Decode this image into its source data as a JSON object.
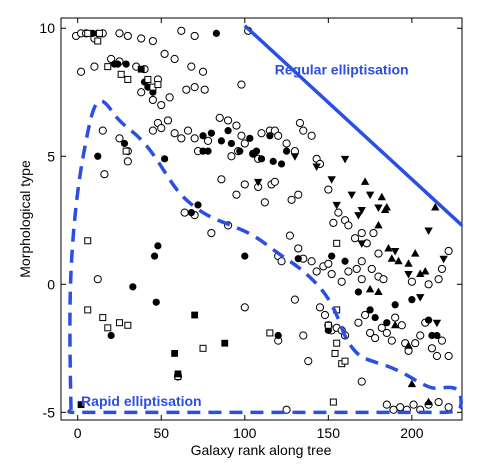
{
  "chart_data": {
    "type": "scatter",
    "xlabel": "Galaxy rank along tree",
    "ylabel": "Morphological type",
    "xlim": [
      -10,
      230
    ],
    "ylim": [
      -5.3,
      10.4
    ],
    "xticks": [
      0,
      50,
      100,
      150,
      200
    ],
    "yticks": [
      -5,
      0,
      5,
      10
    ],
    "xtick_labels": [
      "0",
      "50",
      "100",
      "150",
      "200"
    ],
    "ytick_labels": [
      "-5",
      "0",
      "5",
      "10"
    ],
    "grid": false,
    "colors": {
      "annotation": "#2b4fe3",
      "marker": "#000000"
    },
    "annotations": [
      {
        "text": "Regular elliptisation",
        "x": 158,
        "y": 8.2
      },
      {
        "text": "Rapid elliptisation",
        "x": 2,
        "y": -4.75
      }
    ],
    "regular_line": {
      "style": "solid",
      "x": [
        100,
        230
      ],
      "y": [
        10.1,
        2.3
      ]
    },
    "rapid_boundary": {
      "style": "dashed",
      "x": [
        -4,
        -5,
        -4,
        0,
        6,
        10,
        14,
        18,
        22,
        28,
        36,
        44,
        52,
        60,
        70,
        80,
        92,
        106,
        120,
        134,
        148,
        156,
        160,
        168,
        176,
        186,
        196,
        206,
        214,
        222,
        228,
        230,
        228,
        210,
        180,
        140,
        100,
        60,
        30,
        10,
        0,
        -6,
        -4
      ],
      "y": [
        -4.9,
        -2,
        1,
        3.8,
        6.0,
        7.0,
        7.2,
        7.0,
        6.6,
        6.2,
        5.8,
        5.2,
        4.4,
        3.6,
        3.0,
        2.6,
        2.3,
        1.9,
        1.2,
        0.6,
        -0.3,
        -1.3,
        -2.1,
        -2.8,
        -3.0,
        -3.2,
        -3.5,
        -3.9,
        -4.1,
        -4.0,
        -4.1,
        -4.6,
        -5.0,
        -5.0,
        -5.0,
        -5.0,
        -5.0,
        -5.0,
        -5.0,
        -5.0,
        -5.0,
        -5.0,
        -4.9
      ]
    },
    "series": [
      {
        "marker": "open-circle",
        "points": [
          [
            -1,
            9.7
          ],
          [
            2,
            9.8
          ],
          [
            5,
            9.8
          ],
          [
            15,
            9.8
          ],
          [
            25,
            9.8
          ],
          [
            30,
            9.7
          ],
          [
            38,
            9.6
          ],
          [
            45,
            9.5
          ],
          [
            2,
            8.3
          ],
          [
            10,
            8.5
          ],
          [
            20,
            8.8
          ],
          [
            25,
            8.7
          ],
          [
            35,
            8.5
          ],
          [
            40,
            8.4
          ],
          [
            48,
            8.0
          ],
          [
            52,
            9.0
          ],
          [
            58,
            8.8
          ],
          [
            62,
            9.9
          ],
          [
            68,
            8.5
          ],
          [
            70,
            9.7
          ],
          [
            75,
            8.3
          ],
          [
            102,
            9.9
          ],
          [
            10,
            9.6
          ],
          [
            38,
            7.5
          ],
          [
            45,
            7.2
          ],
          [
            50,
            7.0
          ],
          [
            55,
            7.3
          ],
          [
            65,
            7.6
          ],
          [
            70,
            7.7
          ],
          [
            76,
            7.6
          ],
          [
            98,
            7.8
          ],
          [
            15,
            6.0
          ],
          [
            25,
            5.7
          ],
          [
            30,
            5.2
          ],
          [
            45,
            6.0
          ],
          [
            48,
            6.3
          ],
          [
            50,
            6.1
          ],
          [
            54,
            6.4
          ],
          [
            58,
            5.9
          ],
          [
            62,
            5.7
          ],
          [
            66,
            6.0
          ],
          [
            70,
            5.7
          ],
          [
            72,
            5.2
          ],
          [
            78,
            5.6
          ],
          [
            85,
            6.5
          ],
          [
            90,
            6.4
          ],
          [
            95,
            6.2
          ],
          [
            98,
            5.8
          ],
          [
            100,
            5.5
          ],
          [
            110,
            5.9
          ],
          [
            115,
            6.0
          ],
          [
            118,
            6.0
          ],
          [
            120,
            5.8
          ],
          [
            125,
            5.5
          ],
          [
            130,
            5.2
          ],
          [
            133,
            6.3
          ],
          [
            135,
            6.0
          ],
          [
            140,
            5.8
          ],
          [
            143,
            4.9
          ],
          [
            145,
            4.7
          ],
          [
            92,
            5.0
          ],
          [
            96,
            5.2
          ],
          [
            105,
            5.1
          ],
          [
            108,
            4.9
          ],
          [
            16,
            4.3
          ],
          [
            30,
            4.8
          ],
          [
            86,
            4.1
          ],
          [
            95,
            3.5
          ],
          [
            100,
            3.9
          ],
          [
            108,
            3.8
          ],
          [
            112,
            3.2
          ],
          [
            116,
            3.9
          ],
          [
            118,
            4.0
          ],
          [
            128,
            3.3
          ],
          [
            132,
            3.5
          ],
          [
            150,
            3.7
          ],
          [
            153,
            2.4
          ],
          [
            156,
            2.8
          ],
          [
            160,
            2.5
          ],
          [
            162,
            2.3
          ],
          [
            166,
            1.8
          ],
          [
            170,
            2.0
          ],
          [
            173,
            1.6
          ],
          [
            177,
            2.0
          ],
          [
            180,
            1.2
          ],
          [
            64,
            2.8
          ],
          [
            70,
            2.7
          ],
          [
            80,
            2.0
          ],
          [
            90,
            2.3
          ],
          [
            127,
            1.9
          ],
          [
            120,
            1.1
          ],
          [
            122,
            0.9
          ],
          [
            132,
            1.4
          ],
          [
            135,
            1.0
          ],
          [
            140,
            0.9
          ],
          [
            143,
            0.5
          ],
          [
            147,
            0.7
          ],
          [
            150,
            0.8
          ],
          [
            152,
            0.4
          ],
          [
            158,
            0.1
          ],
          [
            162,
            0.5
          ],
          [
            167,
            0.6
          ],
          [
            170,
            0.9
          ],
          [
            176,
            0.6
          ],
          [
            180,
            0.3
          ],
          [
            183,
            0.2
          ],
          [
            200,
            0.1
          ],
          [
            210,
            0.0
          ],
          [
            216,
            0.2
          ],
          [
            218,
            0.6
          ],
          [
            222,
            1.3
          ],
          [
            130,
            -0.6
          ],
          [
            150,
            -1.6
          ],
          [
            152,
            -1.8
          ],
          [
            155,
            -1.7
          ],
          [
            158,
            -1.8
          ],
          [
            160,
            -2.0
          ],
          [
            168,
            -1.5
          ],
          [
            172,
            -1.2
          ],
          [
            175,
            -1.9
          ],
          [
            178,
            -2.1
          ],
          [
            182,
            -1.7
          ],
          [
            185,
            -1.9
          ],
          [
            188,
            -2.2
          ],
          [
            190,
            -1.3
          ],
          [
            194,
            -1.6
          ],
          [
            196,
            -2.3
          ],
          [
            198,
            -2.6
          ],
          [
            202,
            -2.3
          ],
          [
            205,
            -2.0
          ],
          [
            208,
            -1.5
          ],
          [
            212,
            -2.5
          ],
          [
            215,
            -2.8
          ],
          [
            222,
            -2.8
          ],
          [
            218,
            -2.2
          ],
          [
            60,
            -3.6
          ],
          [
            120,
            -2.2
          ],
          [
            135,
            -2.0
          ],
          [
            138,
            -3.0
          ],
          [
            145,
            -0.9
          ],
          [
            148,
            -1.2
          ],
          [
            170,
            -3.8
          ],
          [
            185,
            -4.7
          ],
          [
            189,
            -4.9
          ],
          [
            193,
            -4.8
          ],
          [
            197,
            -4.9
          ],
          [
            201,
            -4.7
          ],
          [
            205,
            -4.9
          ],
          [
            210,
            -4.7
          ],
          [
            216,
            -4.6
          ],
          [
            222,
            -4.8
          ],
          [
            12,
            0.2
          ],
          [
            100,
            -0.9
          ],
          [
            125,
            -4.9
          ],
          [
            170,
            0.2
          ]
        ]
      },
      {
        "marker": "filled-circle",
        "points": [
          [
            9,
            9.8
          ],
          [
            12,
            9.8
          ],
          [
            22,
            8.6
          ],
          [
            24,
            8.6
          ],
          [
            29,
            8.6
          ],
          [
            40,
            7.9
          ],
          [
            42,
            7.7
          ],
          [
            45,
            7.5
          ],
          [
            83,
            9.8
          ],
          [
            75,
            5.8
          ],
          [
            80,
            5.9
          ],
          [
            90,
            6.0
          ],
          [
            105,
            5.1
          ],
          [
            115,
            5.8
          ],
          [
            125,
            5.2
          ],
          [
            12,
            5.0
          ],
          [
            28,
            5.5
          ],
          [
            52,
            4.9
          ],
          [
            72,
            3.1
          ],
          [
            48,
            1.5
          ],
          [
            33,
            -0.1
          ],
          [
            46,
            1.1
          ],
          [
            47,
            -0.7
          ],
          [
            100,
            1.1
          ],
          [
            152,
            1.1
          ],
          [
            160,
            0.9
          ],
          [
            190,
            -0.8
          ],
          [
            200,
            -0.6
          ],
          [
            210,
            -1.4
          ],
          [
            212,
            -2.0
          ],
          [
            168,
            -0.3
          ],
          [
            175,
            -1.0
          ],
          [
            120,
            -2.0
          ],
          [
            20,
            -2.0
          ],
          [
            75,
            5.2
          ],
          [
            78,
            5.2
          ],
          [
            86,
            5.6
          ],
          [
            92,
            5.5
          ],
          [
            97,
            5.2
          ],
          [
            103,
            5.7
          ],
          [
            107,
            5.2
          ],
          [
            110,
            4.9
          ],
          [
            117,
            4.8
          ],
          [
            122,
            4.7
          ],
          [
            68,
            2.8
          ],
          [
            215,
            -2.0
          ],
          [
            132,
            1.0
          ],
          [
            178,
            -1.3
          ],
          [
            150,
            -1.8
          ],
          [
            185,
            -1.5
          ]
        ]
      },
      {
        "marker": "open-square",
        "points": [
          [
            6,
            9.8
          ],
          [
            13,
            9.8
          ],
          [
            12,
            9.5
          ],
          [
            18,
            8.5
          ],
          [
            26,
            8.2
          ],
          [
            30,
            8.0
          ],
          [
            42,
            8.0
          ],
          [
            45,
            7.7
          ],
          [
            48,
            7.8
          ],
          [
            6,
            1.7
          ],
          [
            6,
            -1.0
          ],
          [
            15,
            -1.3
          ],
          [
            18,
            -1.7
          ],
          [
            25,
            -1.5
          ],
          [
            30,
            -1.6
          ],
          [
            29,
            5.2
          ],
          [
            75,
            -2.5
          ],
          [
            60,
            -3.6
          ],
          [
            155,
            -2.3
          ],
          [
            158,
            -3.1
          ],
          [
            150,
            -1.6
          ],
          [
            155,
            -1.0
          ],
          [
            153,
            -4.6
          ],
          [
            154,
            -2.7
          ],
          [
            160,
            -3.0
          ],
          [
            155,
            1.6
          ],
          [
            115,
            -1.9
          ]
        ]
      },
      {
        "marker": "filled-square",
        "points": [
          [
            2,
            -4.7
          ],
          [
            38,
            8.4
          ],
          [
            70,
            -1.2
          ],
          [
            60,
            -3.5
          ],
          [
            58,
            -2.7
          ],
          [
            88,
            -2.3
          ]
        ]
      },
      {
        "marker": "filled-triangle",
        "points": [
          [
            172,
            4.0
          ],
          [
            182,
            3.4
          ],
          [
            185,
            3.0
          ],
          [
            184,
            2.9
          ],
          [
            180,
            2.3
          ],
          [
            186,
            1.4
          ],
          [
            188,
            1.0
          ],
          [
            192,
            0.9
          ],
          [
            198,
            0.8
          ],
          [
            202,
            1.2
          ],
          [
            205,
            0.4
          ],
          [
            208,
            0.5
          ],
          [
            175,
            -0.2
          ],
          [
            180,
            -0.3
          ],
          [
            190,
            -1.6
          ],
          [
            214,
            3.0
          ],
          [
            200,
            -3.9
          ],
          [
            198,
            -2.4
          ],
          [
            210,
            -4.6
          ]
        ]
      },
      {
        "marker": "filled-inverted-triangle",
        "points": [
          [
            108,
            4.0
          ],
          [
            130,
            5.0
          ],
          [
            143,
            4.6
          ],
          [
            152,
            4.1
          ],
          [
            164,
            3.5
          ],
          [
            168,
            2.7
          ],
          [
            170,
            2.9
          ],
          [
            175,
            3.5
          ],
          [
            180,
            3.0
          ],
          [
            198,
            0.4
          ],
          [
            210,
            2.1
          ],
          [
            219,
            1.0
          ],
          [
            160,
            4.9
          ],
          [
            155,
            3.1
          ],
          [
            170,
            1.6
          ],
          [
            190,
            1.3
          ],
          [
            205,
            -0.5
          ],
          [
            215,
            -1.5
          ]
        ]
      }
    ]
  }
}
